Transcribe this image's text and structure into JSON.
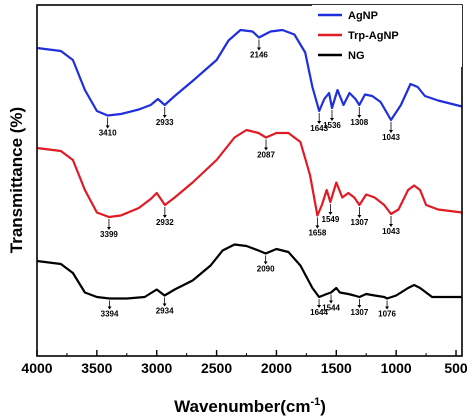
{
  "chart_data": {
    "type": "line",
    "title": "",
    "xlabel": "Wavenumber(cm",
    "xlabel_sup": "-1",
    "xlabel_close": ")",
    "ylabel": "Transmittance (%)",
    "xlim": [
      4000,
      450
    ],
    "x_ticks": [
      4000,
      3500,
      3000,
      2500,
      2000,
      1500,
      1000,
      500
    ],
    "x_tick_labels": [
      "4000",
      "3500",
      "3000",
      "2500",
      "2000",
      "1500",
      "1000",
      "500"
    ],
    "y_ticks_shown": false,
    "legend_position": "top-right",
    "series": [
      {
        "name": "AgNP",
        "color": "#1f2fdc",
        "points": [
          [
            4000,
            0.88
          ],
          [
            3800,
            0.86
          ],
          [
            3700,
            0.8
          ],
          [
            3600,
            0.6
          ],
          [
            3500,
            0.46
          ],
          [
            3410,
            0.43
          ],
          [
            3300,
            0.44
          ],
          [
            3150,
            0.47
          ],
          [
            3050,
            0.5
          ],
          [
            2990,
            0.54
          ],
          [
            2933,
            0.5
          ],
          [
            2850,
            0.56
          ],
          [
            2700,
            0.66
          ],
          [
            2500,
            0.8
          ],
          [
            2400,
            0.93
          ],
          [
            2300,
            1.0
          ],
          [
            2200,
            0.99
          ],
          [
            2146,
            0.95
          ],
          [
            2050,
            0.99
          ],
          [
            1950,
            1.0
          ],
          [
            1850,
            0.97
          ],
          [
            1760,
            0.85
          ],
          [
            1700,
            0.62
          ],
          [
            1643,
            0.46
          ],
          [
            1600,
            0.54
          ],
          [
            1560,
            0.58
          ],
          [
            1536,
            0.48
          ],
          [
            1490,
            0.6
          ],
          [
            1440,
            0.5
          ],
          [
            1390,
            0.58
          ],
          [
            1340,
            0.54
          ],
          [
            1308,
            0.5
          ],
          [
            1260,
            0.57
          ],
          [
            1200,
            0.56
          ],
          [
            1130,
            0.52
          ],
          [
            1043,
            0.4
          ],
          [
            960,
            0.5
          ],
          [
            880,
            0.64
          ],
          [
            820,
            0.62
          ],
          [
            760,
            0.56
          ],
          [
            650,
            0.53
          ],
          [
            450,
            0.49
          ]
        ]
      },
      {
        "name": "Trp-AgNP",
        "color": "#e01b24",
        "points": [
          [
            4000,
            0.88
          ],
          [
            3800,
            0.86
          ],
          [
            3700,
            0.8
          ],
          [
            3600,
            0.6
          ],
          [
            3500,
            0.45
          ],
          [
            3399,
            0.42
          ],
          [
            3300,
            0.43
          ],
          [
            3150,
            0.48
          ],
          [
            3050,
            0.54
          ],
          [
            3000,
            0.58
          ],
          [
            2932,
            0.5
          ],
          [
            2850,
            0.55
          ],
          [
            2700,
            0.65
          ],
          [
            2500,
            0.8
          ],
          [
            2350,
            0.95
          ],
          [
            2250,
            1.0
          ],
          [
            2150,
            0.98
          ],
          [
            2087,
            0.95
          ],
          [
            2000,
            0.98
          ],
          [
            1900,
            0.98
          ],
          [
            1800,
            0.92
          ],
          [
            1720,
            0.7
          ],
          [
            1658,
            0.43
          ],
          [
            1620,
            0.5
          ],
          [
            1580,
            0.6
          ],
          [
            1549,
            0.52
          ],
          [
            1500,
            0.65
          ],
          [
            1450,
            0.55
          ],
          [
            1400,
            0.58
          ],
          [
            1350,
            0.55
          ],
          [
            1307,
            0.5
          ],
          [
            1250,
            0.57
          ],
          [
            1180,
            0.55
          ],
          [
            1100,
            0.5
          ],
          [
            1043,
            0.44
          ],
          [
            980,
            0.47
          ],
          [
            900,
            0.6
          ],
          [
            850,
            0.63
          ],
          [
            800,
            0.6
          ],
          [
            750,
            0.5
          ],
          [
            650,
            0.47
          ],
          [
            450,
            0.45
          ]
        ]
      },
      {
        "name": "NG",
        "color": "#000000",
        "points": [
          [
            4000,
            0.76
          ],
          [
            3800,
            0.74
          ],
          [
            3700,
            0.68
          ],
          [
            3600,
            0.55
          ],
          [
            3500,
            0.52
          ],
          [
            3394,
            0.51
          ],
          [
            3250,
            0.51
          ],
          [
            3100,
            0.52
          ],
          [
            3000,
            0.57
          ],
          [
            2934,
            0.53
          ],
          [
            2850,
            0.57
          ],
          [
            2700,
            0.63
          ],
          [
            2550,
            0.73
          ],
          [
            2450,
            0.83
          ],
          [
            2350,
            0.87
          ],
          [
            2250,
            0.86
          ],
          [
            2150,
            0.83
          ],
          [
            2090,
            0.81
          ],
          [
            2000,
            0.84
          ],
          [
            1900,
            0.82
          ],
          [
            1800,
            0.73
          ],
          [
            1700,
            0.58
          ],
          [
            1644,
            0.52
          ],
          [
            1580,
            0.54
          ],
          [
            1544,
            0.55
          ],
          [
            1500,
            0.58
          ],
          [
            1470,
            0.55
          ],
          [
            1400,
            0.54
          ],
          [
            1350,
            0.53
          ],
          [
            1307,
            0.52
          ],
          [
            1250,
            0.54
          ],
          [
            1180,
            0.53
          ],
          [
            1100,
            0.52
          ],
          [
            1076,
            0.51
          ],
          [
            1000,
            0.53
          ],
          [
            900,
            0.58
          ],
          [
            850,
            0.6
          ],
          [
            800,
            0.58
          ],
          [
            700,
            0.52
          ],
          [
            450,
            0.52
          ]
        ]
      }
    ],
    "annotations": [
      {
        "series": "AgNP",
        "label": "3410",
        "x": 3410
      },
      {
        "series": "AgNP",
        "label": "2933",
        "x": 2933
      },
      {
        "series": "AgNP",
        "label": "2146",
        "x": 2146
      },
      {
        "series": "AgNP",
        "label": "1643",
        "x": 1643
      },
      {
        "series": "AgNP",
        "label": "1536",
        "x": 1536
      },
      {
        "series": "AgNP",
        "label": "1308",
        "x": 1308
      },
      {
        "series": "AgNP",
        "label": "1043",
        "x": 1043
      },
      {
        "series": "Trp-AgNP",
        "label": "3399",
        "x": 3399
      },
      {
        "series": "Trp-AgNP",
        "label": "2932",
        "x": 2932
      },
      {
        "series": "Trp-AgNP",
        "label": "2087",
        "x": 2087
      },
      {
        "series": "Trp-AgNP",
        "label": "1658",
        "x": 1658
      },
      {
        "series": "Trp-AgNP",
        "label": "1549",
        "x": 1549
      },
      {
        "series": "Trp-AgNP",
        "label": "1307",
        "x": 1307
      },
      {
        "series": "Trp-AgNP",
        "label": "1043",
        "x": 1043
      },
      {
        "series": "NG",
        "label": "3394",
        "x": 3394
      },
      {
        "series": "NG",
        "label": "2934",
        "x": 2934
      },
      {
        "series": "NG",
        "label": "2090",
        "x": 2090
      },
      {
        "series": "NG",
        "label": "1644",
        "x": 1644
      },
      {
        "series": "NG",
        "label": "1544",
        "x": 1544
      },
      {
        "series": "NG",
        "label": "1307",
        "x": 1307
      },
      {
        "series": "NG",
        "label": "1076",
        "x": 1076
      }
    ]
  }
}
